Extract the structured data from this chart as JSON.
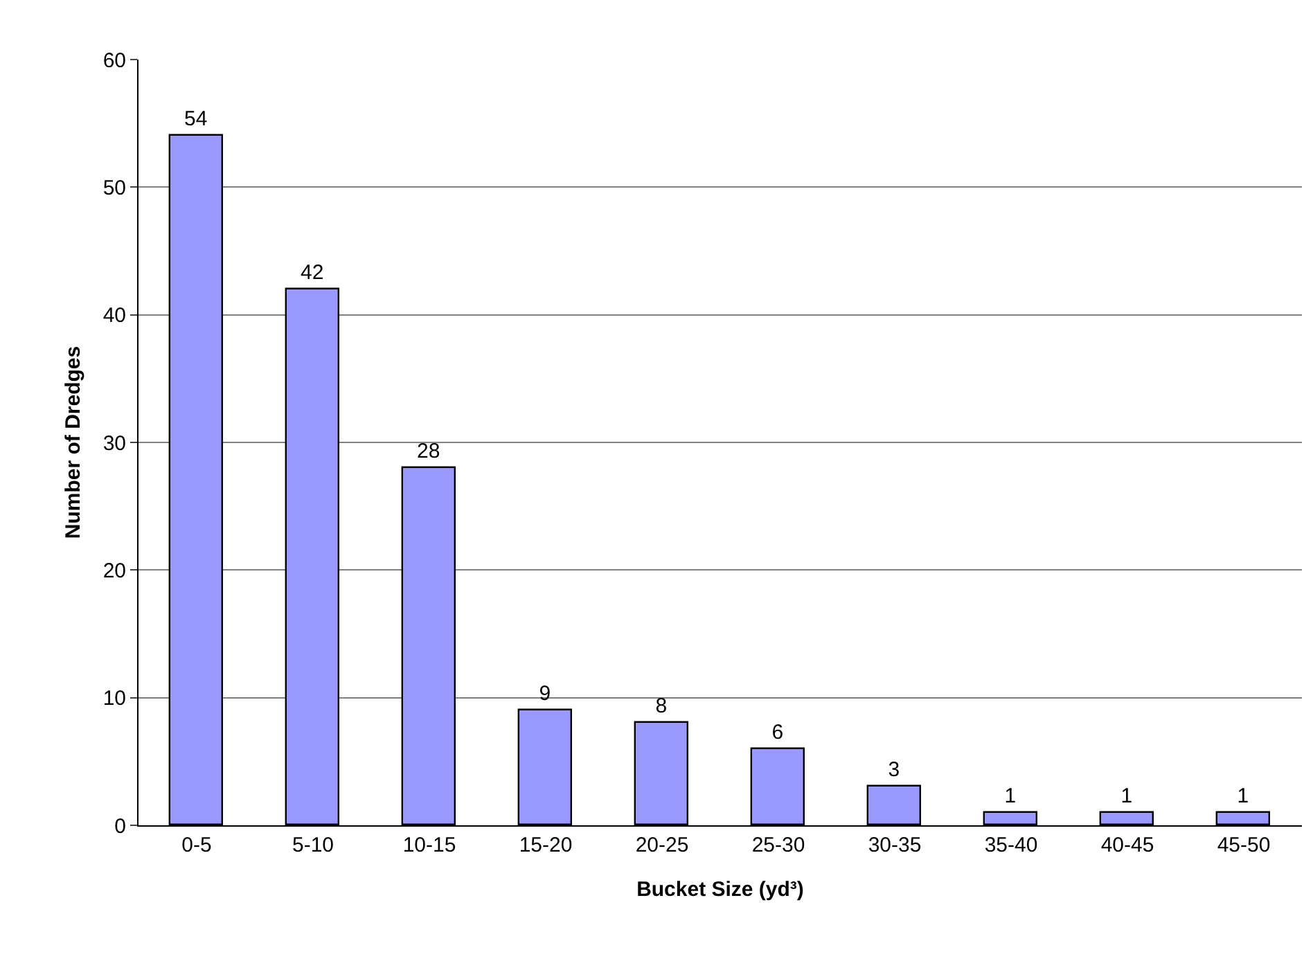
{
  "chart_data": {
    "type": "bar",
    "xlabel": "Bucket Size (yd³)",
    "ylabel": "Number of Dredges",
    "categories": [
      "0-5",
      "5-10",
      "10-15",
      "15-20",
      "20-25",
      "25-30",
      "30-35",
      "35-40",
      "40-45",
      "45-50"
    ],
    "values": [
      54,
      42,
      28,
      9,
      8,
      6,
      3,
      1,
      1,
      1
    ],
    "color": "#9999ff",
    "ylim": [
      0,
      60
    ],
    "yticks": [
      0,
      10,
      20,
      30,
      40,
      50,
      60
    ],
    "grid": "y",
    "legend": false,
    "data_labels": true
  }
}
